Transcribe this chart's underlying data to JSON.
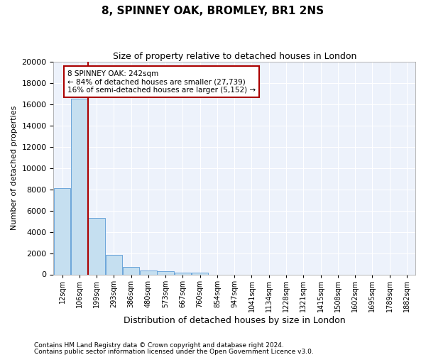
{
  "title": "8, SPINNEY OAK, BROMLEY, BR1 2NS",
  "subtitle": "Size of property relative to detached houses in London",
  "xlabel": "Distribution of detached houses by size in London",
  "ylabel": "Number of detached properties",
  "footnote1": "Contains HM Land Registry data © Crown copyright and database right 2024.",
  "footnote2": "Contains public sector information licensed under the Open Government Licence v3.0.",
  "annotation_line1": "8 SPINNEY OAK: 242sqm",
  "annotation_line2": "← 84% of detached houses are smaller (27,739)",
  "annotation_line3": "16% of semi-detached houses are larger (5,152) →",
  "property_size_bin": 2,
  "bar_color": "#c5dff0",
  "bar_edge_color": "#5b9bd5",
  "redline_color": "#aa0000",
  "annotation_box_color": "#aa0000",
  "background_color": "#edf2fb",
  "grid_color": "#ffffff",
  "bin_labels": [
    "12sqm",
    "106sqm",
    "199sqm",
    "293sqm",
    "386sqm",
    "480sqm",
    "573sqm",
    "667sqm",
    "760sqm",
    "854sqm",
    "947sqm",
    "1041sqm",
    "1134sqm",
    "1228sqm",
    "1321sqm",
    "1415sqm",
    "1508sqm",
    "1602sqm",
    "1695sqm",
    "1789sqm",
    "1882sqm"
  ],
  "bar_heights": [
    8100,
    16500,
    5300,
    1850,
    700,
    380,
    280,
    200,
    170,
    0,
    0,
    0,
    0,
    0,
    0,
    0,
    0,
    0,
    0,
    0,
    0
  ],
  "ylim": [
    0,
    20000
  ],
  "yticks": [
    0,
    2000,
    4000,
    6000,
    8000,
    10000,
    12000,
    14000,
    16000,
    18000,
    20000
  ]
}
